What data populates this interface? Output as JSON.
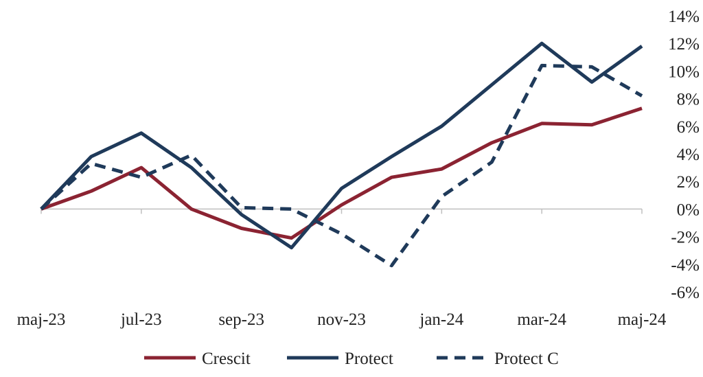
{
  "chart_data": {
    "type": "line",
    "title": "",
    "xlabel": "",
    "ylabel": "",
    "x": [
      "maj-23",
      "jun-23",
      "jul-23",
      "aug-23",
      "sep-23",
      "okt-23",
      "nov-23",
      "dec-23",
      "jan-24",
      "feb-24",
      "mar-24",
      "apr-24",
      "maj-24"
    ],
    "x_tick_labels": [
      "maj-23",
      "jul-23",
      "sep-23",
      "nov-23",
      "jan-24",
      "mar-24",
      "maj-24"
    ],
    "y_tick_labels": [
      "14%",
      "12%",
      "10%",
      "8%",
      "6%",
      "4%",
      "2%",
      "0%",
      "-2%",
      "-4%",
      "-6%"
    ],
    "ylim": [
      -6,
      14
    ],
    "y_unit": "%",
    "y_axis_position": "right",
    "grid": false,
    "legend_position": "bottom",
    "series": [
      {
        "name": "Crescit",
        "color": "#8b2332",
        "style": "solid",
        "values": [
          0.0,
          1.3,
          3.0,
          0.0,
          -1.4,
          -2.1,
          0.3,
          2.3,
          2.9,
          4.8,
          6.2,
          6.1,
          7.3
        ]
      },
      {
        "name": "Protect",
        "color": "#1f3a5a",
        "style": "solid",
        "values": [
          0.0,
          3.8,
          5.5,
          3.0,
          -0.4,
          -2.8,
          1.5,
          3.8,
          6.0,
          9.0,
          12.0,
          9.2,
          11.8
        ]
      },
      {
        "name": "Protect C",
        "color": "#1f3a5a",
        "style": "dashed",
        "values": [
          0.0,
          3.3,
          2.3,
          3.9,
          0.1,
          0.0,
          -1.8,
          -4.1,
          0.9,
          3.4,
          10.4,
          10.3,
          8.2
        ]
      }
    ]
  }
}
